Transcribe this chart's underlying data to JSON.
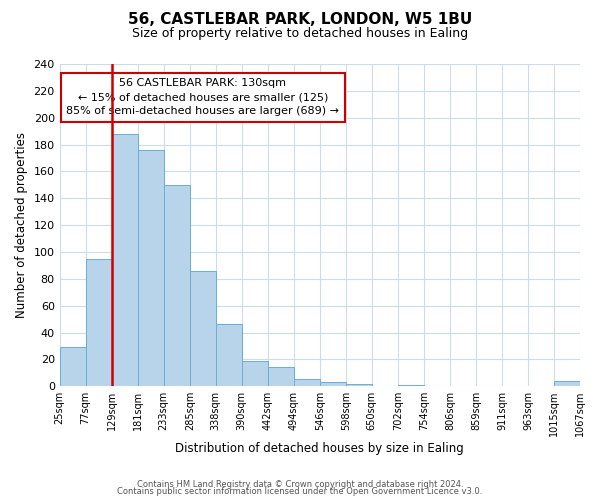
{
  "title": "56, CASTLEBAR PARK, LONDON, W5 1BU",
  "subtitle": "Size of property relative to detached houses in Ealing",
  "xlabel": "Distribution of detached houses by size in Ealing",
  "ylabel": "Number of detached properties",
  "bin_edges": [
    "25sqm",
    "77sqm",
    "129sqm",
    "181sqm",
    "233sqm",
    "285sqm",
    "338sqm",
    "390sqm",
    "442sqm",
    "494sqm",
    "546sqm",
    "598sqm",
    "650sqm",
    "702sqm",
    "754sqm",
    "806sqm",
    "859sqm",
    "911sqm",
    "963sqm",
    "1015sqm",
    "1067sqm"
  ],
  "bar_values": [
    29,
    95,
    188,
    176,
    150,
    86,
    46,
    19,
    14,
    5,
    3,
    2,
    0,
    1,
    0,
    0,
    0,
    0,
    0,
    4
  ],
  "bar_color": "#b8d4ea",
  "bar_edge_color": "#6aaed6",
  "subject_bar_index": 2,
  "subject_line_color": "#cc0000",
  "ylim": [
    0,
    240
  ],
  "yticks": [
    0,
    20,
    40,
    60,
    80,
    100,
    120,
    140,
    160,
    180,
    200,
    220,
    240
  ],
  "annotation_title": "56 CASTLEBAR PARK: 130sqm",
  "annotation_line1": "← 15% of detached houses are smaller (125)",
  "annotation_line2": "85% of semi-detached houses are larger (689) →",
  "annotation_box_color": "#ffffff",
  "annotation_box_edge": "#cc0000",
  "footer1": "Contains HM Land Registry data © Crown copyright and database right 2024.",
  "footer2": "Contains public sector information licensed under the Open Government Licence v3.0.",
  "background_color": "#ffffff",
  "grid_color": "#ccdde8"
}
